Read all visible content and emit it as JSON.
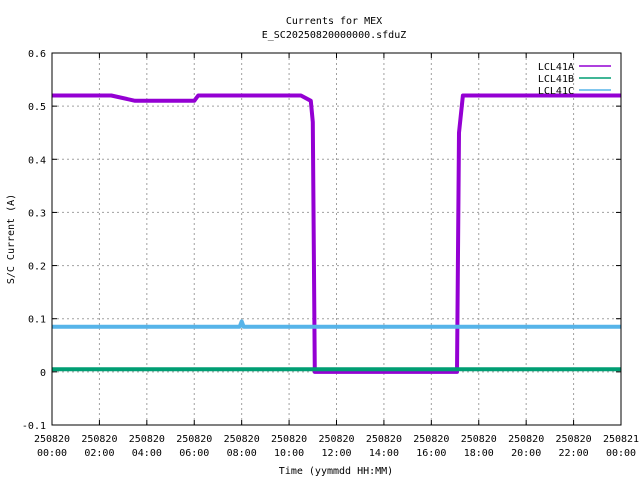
{
  "chart_data": {
    "type": "line",
    "title": "Currents for MEX",
    "subtitle": "E_SC20250820000000.sfduZ",
    "xlabel": "Time (yymmdd HH:MM)",
    "ylabel": "S/C Current (A)",
    "ylim": [
      -0.1,
      0.6
    ],
    "xlim": [
      "2025-08-20 00:00",
      "2025-08-21 00:00"
    ],
    "grid": true,
    "legend_position": "top-right",
    "x_ticks": [
      {
        "date": "250820",
        "time": "00:00"
      },
      {
        "date": "250820",
        "time": "02:00"
      },
      {
        "date": "250820",
        "time": "04:00"
      },
      {
        "date": "250820",
        "time": "06:00"
      },
      {
        "date": "250820",
        "time": "08:00"
      },
      {
        "date": "250820",
        "time": "10:00"
      },
      {
        "date": "250820",
        "time": "12:00"
      },
      {
        "date": "250820",
        "time": "14:00"
      },
      {
        "date": "250820",
        "time": "16:00"
      },
      {
        "date": "250820",
        "time": "18:00"
      },
      {
        "date": "250820",
        "time": "20:00"
      },
      {
        "date": "250820",
        "time": "22:00"
      },
      {
        "date": "250821",
        "time": "00:00"
      }
    ],
    "y_ticks": [
      "-0.1",
      "0",
      "0.1",
      "0.2",
      "0.3",
      "0.4",
      "0.5",
      "0.6"
    ],
    "series": [
      {
        "name": "LCL41A",
        "color": "#9400d3",
        "points": [
          [
            "2025-08-20 00:00",
            0.52
          ],
          [
            "2025-08-20 02:00",
            0.52
          ],
          [
            "2025-08-20 02:30",
            0.52
          ],
          [
            "2025-08-20 03:30",
            0.51
          ],
          [
            "2025-08-20 06:00",
            0.51
          ],
          [
            "2025-08-20 06:10",
            0.52
          ],
          [
            "2025-08-20 10:30",
            0.52
          ],
          [
            "2025-08-20 10:55",
            0.51
          ],
          [
            "2025-08-20 11:00",
            0.47
          ],
          [
            "2025-08-20 11:05",
            0.0
          ],
          [
            "2025-08-20 17:05",
            0.0
          ],
          [
            "2025-08-20 17:10",
            0.45
          ],
          [
            "2025-08-20 17:20",
            0.52
          ],
          [
            "2025-08-21 00:00",
            0.52
          ]
        ]
      },
      {
        "name": "LCL41B",
        "color": "#009e73",
        "points": [
          [
            "2025-08-20 00:00",
            0.005
          ],
          [
            "2025-08-21 00:00",
            0.005
          ]
        ]
      },
      {
        "name": "LCL41C",
        "color": "#56b4e9",
        "points": [
          [
            "2025-08-20 00:00",
            0.085
          ],
          [
            "2025-08-20 07:55",
            0.085
          ],
          [
            "2025-08-20 08:00",
            0.095
          ],
          [
            "2025-08-20 08:05",
            0.085
          ],
          [
            "2025-08-21 00:00",
            0.085
          ]
        ]
      }
    ]
  }
}
